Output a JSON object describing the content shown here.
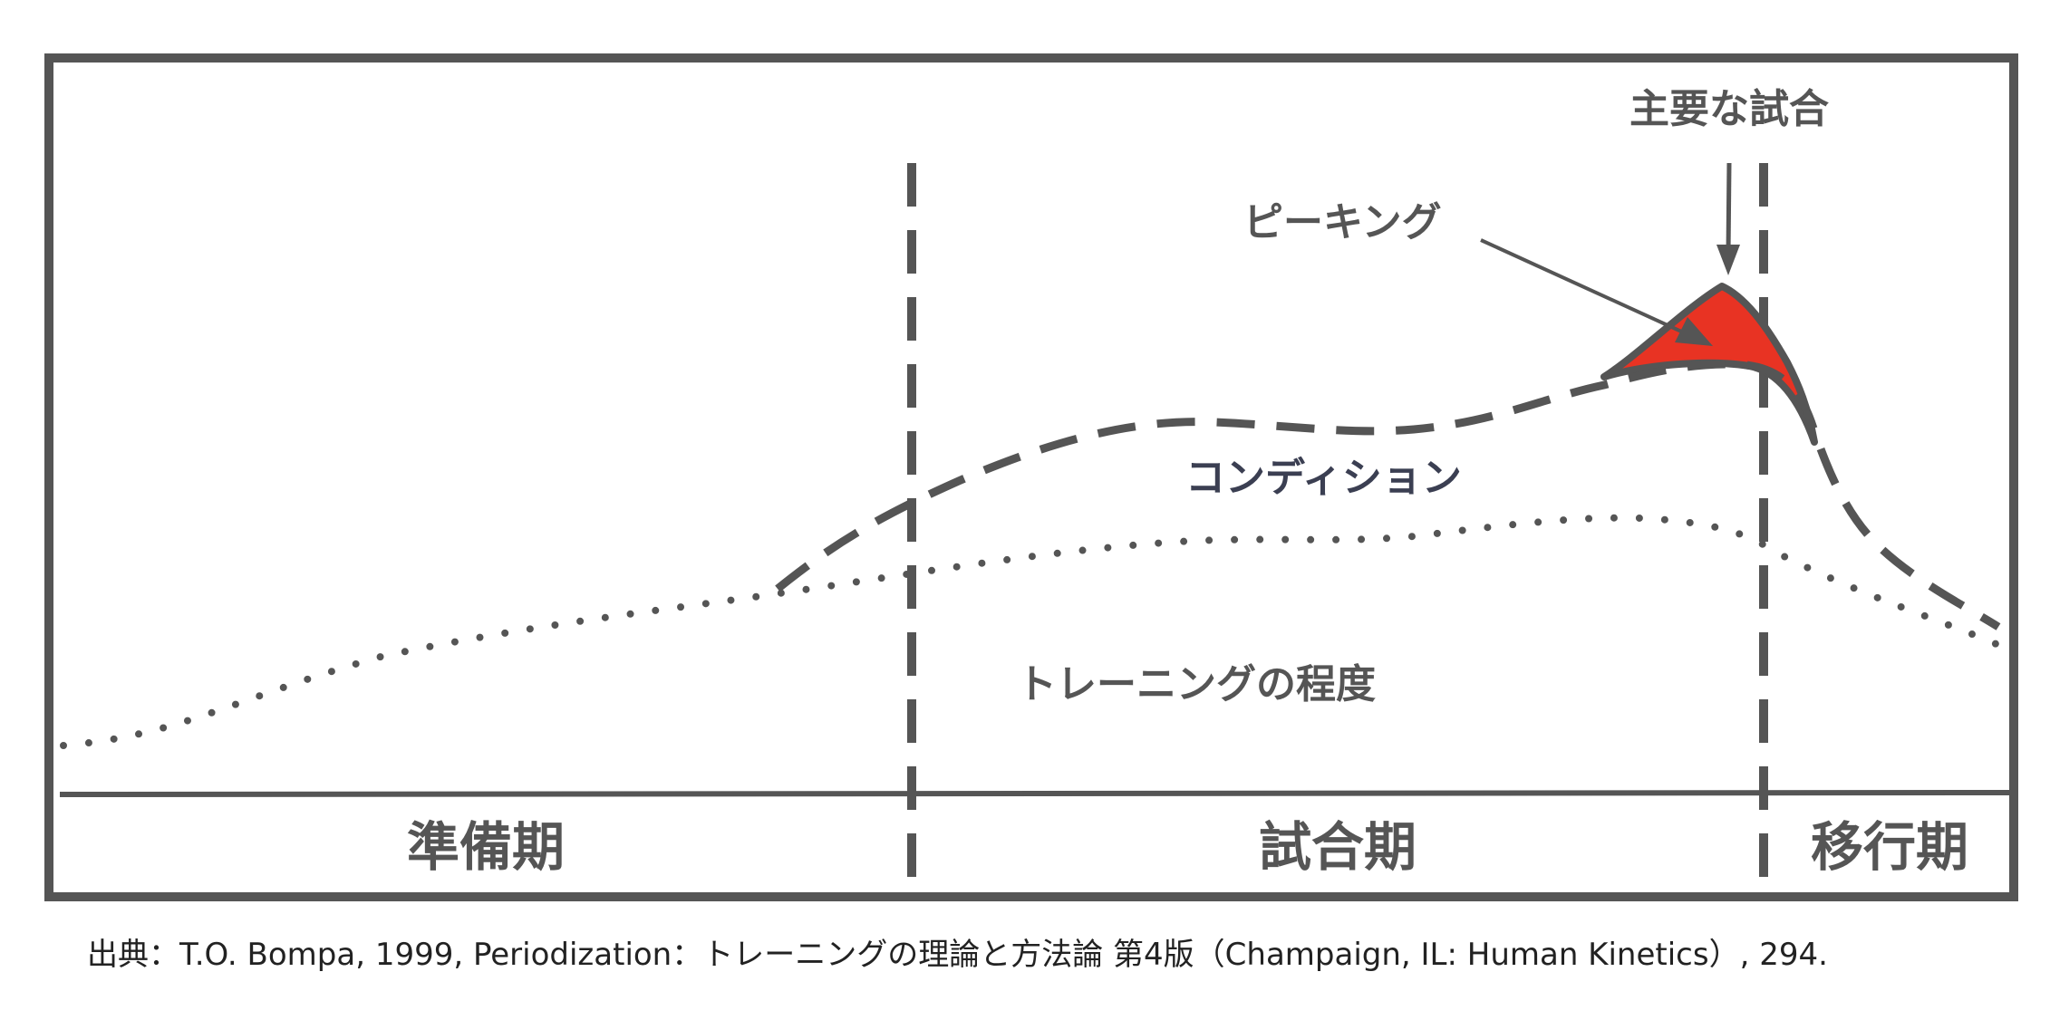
{
  "labels": {
    "main_match": "主要な試合",
    "peaking": "ピーキング",
    "condition": "コンディション",
    "training_level": "トレーニングの程度"
  },
  "phases": {
    "preparation": "準備期",
    "competition": "試合期",
    "transition": "移行期"
  },
  "source": "出典：T.O. Bompa, 1999, Periodization：トレーニングの理論と方法論 第4版（Champaign, IL: Human Kinetics）, 294.",
  "colors": {
    "frame": "#555555",
    "peak_fill": "#e83323",
    "condition_text": "#3b3f52"
  }
}
